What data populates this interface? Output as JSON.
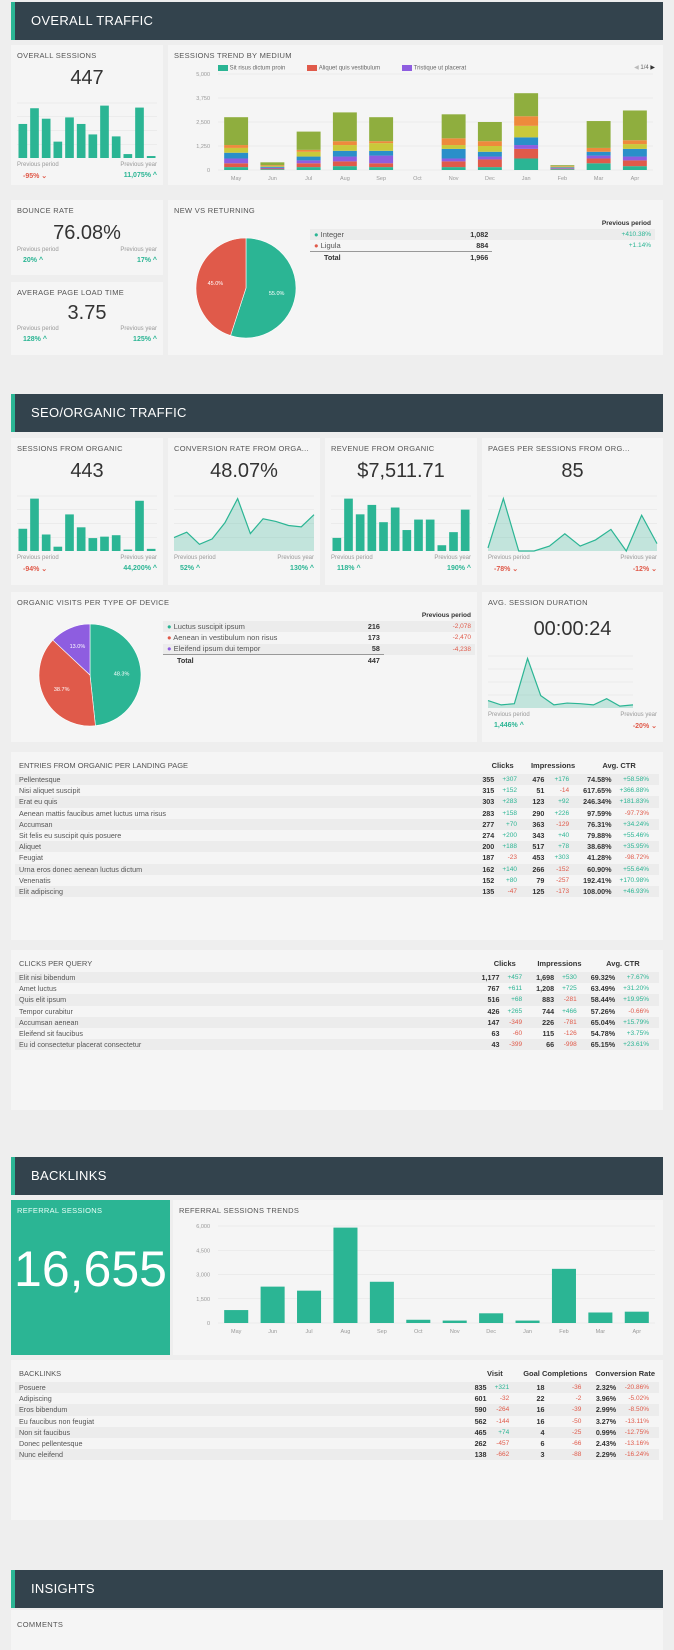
{
  "colors": {
    "accent": "#2bb594",
    "negative": "#e05a4a",
    "purple": "#8e5de0",
    "header": "#33434d"
  },
  "overall": {
    "title": "OVERALL TRAFFIC",
    "sessions": {
      "title": "OVERALL SESSIONS",
      "value": "447",
      "prev_label": "Previous period",
      "year_label": "Previous year",
      "prev": "-95%",
      "year": "11,075%",
      "spark": [
        52,
        76,
        60,
        25,
        62,
        52,
        36,
        80,
        33,
        6,
        77,
        3
      ]
    },
    "trend": {
      "title": "SESSIONS TREND BY MEDIUM",
      "legend": [
        "Sit risus dictum proin",
        "Aliquet quis vestibulum",
        "Tristique ut placerat"
      ],
      "pager": "1/4"
    },
    "bounce": {
      "title": "BOUNCE RATE",
      "value": "76.08%",
      "prev_label": "Previous period",
      "year_label": "Previous year",
      "prev": "20%",
      "year": "17%"
    },
    "load": {
      "title": "AVERAGE PAGE LOAD TIME",
      "value": "3.75",
      "prev_label": "Previous period",
      "year_label": "Previous year",
      "prev": "128%",
      "year": "125%"
    },
    "newret": {
      "title": "NEW VS RETURNING",
      "prev_header": "Previous period",
      "rows": [
        {
          "label": "Integer",
          "value": "1,082",
          "change": "+410.38%"
        },
        {
          "label": "Ligula",
          "value": "884",
          "change": "+1.14%"
        }
      ],
      "total_label": "Total",
      "total": "1,966"
    }
  },
  "seo": {
    "title": "SEO/ORGANIC TRAFFIC",
    "kpis": [
      {
        "title": "SESSIONS FROM ORGANIC",
        "value": "443",
        "prev": "-94%",
        "year": "44,200%",
        "kind": "bar",
        "spark": [
          31,
          73,
          23,
          6,
          51,
          33,
          18,
          20,
          22,
          2,
          70,
          3
        ]
      },
      {
        "title": "CONVERSION RATE FROM ORGA...",
        "value": "48.07%",
        "prev": "52%",
        "year": "130%",
        "kind": "line",
        "spark": [
          20,
          28,
          10,
          18,
          42,
          78,
          26,
          48,
          44,
          38,
          36,
          54
        ]
      },
      {
        "title": "REVENUE FROM ORGANIC",
        "value": "$7,511.71",
        "prev": "118%",
        "year": "190%",
        "kind": "bar",
        "spark": [
          25,
          100,
          70,
          88,
          55,
          83,
          40,
          60,
          60,
          11,
          36,
          79
        ]
      },
      {
        "title": "PAGES PER SESSIONS FROM ORG...",
        "value": "85",
        "prev": "-78%",
        "year": "-12%",
        "kind": "line",
        "spark": [
          5,
          85,
          0,
          0,
          8,
          28,
          8,
          18,
          35,
          0,
          58,
          12
        ]
      }
    ],
    "prev_label": "Previous period",
    "year_label": "Previous year",
    "device": {
      "title": "ORGANIC VISITS PER TYPE OF DEVICE",
      "prev_header": "Previous period",
      "rows": [
        {
          "label": "Luctus suscipit ipsum",
          "value": "216",
          "change": "-2,078"
        },
        {
          "label": "Aenean in vestibulum non risus",
          "value": "173",
          "change": "-2,470"
        },
        {
          "label": "Eleifend ipsum dui tempor",
          "value": "58",
          "change": "-4,238"
        }
      ],
      "total_label": "Total",
      "total": "447"
    },
    "duration": {
      "title": "AVG. SESSION DURATION",
      "value": "00:00:24",
      "prev": "1,446%",
      "year": "-20%",
      "spark": [
        12,
        5,
        7,
        80,
        20,
        5,
        8,
        7,
        5,
        15,
        3,
        5
      ]
    },
    "entries": {
      "title": "ENTRIES FROM ORGANIC PER LANDING PAGE",
      "headers": [
        "Clicks",
        "Impressions",
        "Avg. CTR"
      ],
      "rows": [
        [
          "Pellentesque",
          "355",
          "+307",
          "476",
          "+176",
          "74.58%",
          "+58.58%"
        ],
        [
          "Nisi aliquet suscipit",
          "315",
          "+152",
          "51",
          "-14",
          "617.65%",
          "+366.88%"
        ],
        [
          "Erat eu quis",
          "303",
          "+283",
          "123",
          "+92",
          "246.34%",
          "+181.83%"
        ],
        [
          "Aenean mattis faucibus amet luctus urna risus",
          "283",
          "+158",
          "290",
          "+226",
          "97.59%",
          "-97.73%"
        ],
        [
          "Accumsan",
          "277",
          "+70",
          "363",
          "-129",
          "76.31%",
          "+34.24%"
        ],
        [
          "Sit felis eu suscipit quis posuere",
          "274",
          "+200",
          "343",
          "+40",
          "79.88%",
          "+55.46%"
        ],
        [
          "Aliquet",
          "200",
          "+188",
          "517",
          "+78",
          "38.68%",
          "+35.95%"
        ],
        [
          "Feugiat",
          "187",
          "-23",
          "453",
          "+303",
          "41.28%",
          "-98.72%"
        ],
        [
          "Urna eros donec aenean luctus dictum",
          "162",
          "+140",
          "266",
          "-152",
          "60.90%",
          "+55.64%"
        ],
        [
          "Venenatis",
          "152",
          "+80",
          "79",
          "-257",
          "192.41%",
          "+170.98%"
        ],
        [
          "Elit adipiscing",
          "135",
          "-47",
          "125",
          "-173",
          "108.00%",
          "+46.93%"
        ]
      ]
    },
    "queries": {
      "title": "CLICKS PER QUERY",
      "headers": [
        "Clicks",
        "Impressions",
        "Avg. CTR"
      ],
      "rows": [
        [
          "Elit nisi bibendum",
          "1,177",
          "+457",
          "1,698",
          "+530",
          "69.32%",
          "+7.67%"
        ],
        [
          "Amet luctus",
          "767",
          "+611",
          "1,208",
          "+725",
          "63.49%",
          "+31.20%"
        ],
        [
          "Quis elit ipsum",
          "516",
          "+68",
          "883",
          "-281",
          "58.44%",
          "+19.95%"
        ],
        [
          "Tempor curabitur",
          "426",
          "+265",
          "744",
          "+466",
          "57.26%",
          "-0.66%"
        ],
        [
          "Accumsan aenean",
          "147",
          "-349",
          "226",
          "-781",
          "65.04%",
          "+15.79%"
        ],
        [
          "Eleifend sit faucibus",
          "63",
          "-60",
          "115",
          "-126",
          "54.78%",
          "+3.75%"
        ],
        [
          "Eu id consectetur placerat consectetur",
          "43",
          "-399",
          "66",
          "-998",
          "65.15%",
          "+23.61%"
        ]
      ]
    }
  },
  "backlinks": {
    "title": "BACKLINKS",
    "referral": {
      "title": "REFERRAL SESSIONS",
      "value": "16,655"
    },
    "trend_title": "REFERRAL SESSIONS TRENDS",
    "table": {
      "title": "BACKLINKS",
      "headers": [
        "Visit",
        "Goal Completions",
        "Conversion Rate"
      ],
      "rows": [
        [
          "Posuere",
          "835",
          "+321",
          "18",
          "-36",
          "2.32%",
          "-20.86%"
        ],
        [
          "Adipiscing",
          "601",
          "-32",
          "22",
          "-2",
          "3.96%",
          "-5.02%"
        ],
        [
          "Eros bibendum",
          "590",
          "-264",
          "16",
          "-39",
          "2.99%",
          "-8.50%"
        ],
        [
          "Eu faucibus non feugiat",
          "562",
          "-144",
          "16",
          "-50",
          "3.27%",
          "-13.11%"
        ],
        [
          "Non sit faucibus",
          "465",
          "+74",
          "4",
          "-25",
          "0.99%",
          "-12.75%"
        ],
        [
          "Donec pellentesque",
          "262",
          "-457",
          "6",
          "-66",
          "2.43%",
          "-13.16%"
        ],
        [
          "Nunc eleifend",
          "138",
          "-662",
          "3",
          "-88",
          "2.29%",
          "-16.24%"
        ]
      ]
    }
  },
  "insights": {
    "title": "INSIGHTS",
    "comments_title": "COMMENTS"
  },
  "chart_data": [
    {
      "type": "bar",
      "stacked": true,
      "title": "SESSIONS TREND BY MEDIUM",
      "categories": [
        "May",
        "Jun",
        "Jul",
        "Aug",
        "Sep",
        "Oct",
        "Nov",
        "Dec",
        "Jan",
        "Feb",
        "Mar",
        "Apr"
      ],
      "ylim": [
        0,
        5000
      ],
      "yticks": [
        "0",
        "1,250",
        "2,500",
        "3,750",
        "5,000"
      ],
      "grid": true,
      "legend": "top",
      "series_colors": [
        "#2bb594",
        "#e05a4a",
        "#8e5de0",
        "#2a8fc9",
        "#c9c93a",
        "#ee8a3c",
        "#8fae3e"
      ],
      "series": [
        {
          "name": "Sit risus dictum proin",
          "values": [
            150,
            40,
            150,
            200,
            150,
            0,
            150,
            150,
            600,
            40,
            350,
            200
          ]
        },
        {
          "name": "Aliquet quis vestibulum",
          "values": [
            200,
            40,
            200,
            250,
            200,
            0,
            300,
            400,
            500,
            30,
            250,
            300
          ]
        },
        {
          "name": "Tristique ut placerat",
          "values": [
            250,
            40,
            150,
            250,
            400,
            0,
            150,
            150,
            200,
            30,
            150,
            200
          ]
        },
        {
          "values": [
            300,
            50,
            200,
            300,
            250,
            0,
            500,
            250,
            400,
            40,
            200,
            400
          ]
        },
        {
          "values": [
            250,
            40,
            250,
            300,
            400,
            0,
            200,
            300,
            600,
            30,
            0,
            250
          ]
        },
        {
          "values": [
            150,
            40,
            100,
            200,
            100,
            0,
            350,
            250,
            500,
            30,
            200,
            200
          ]
        },
        {
          "values": [
            1450,
            150,
            950,
            1500,
            1250,
            0,
            1250,
            1000,
            1200,
            50,
            1400,
            1550
          ]
        }
      ]
    },
    {
      "type": "pie",
      "title": "NEW VS RETURNING",
      "labels": [
        "Integer",
        "Ligula"
      ],
      "values": [
        55.0,
        45.0
      ],
      "colors": [
        "#2bb594",
        "#e05a4a"
      ]
    },
    {
      "type": "pie",
      "title": "ORGANIC VISITS PER TYPE OF DEVICE",
      "labels": [
        "Luctus suscipit ipsum",
        "Aenean in vestibulum non risus",
        "Eleifend ipsum dui tempor"
      ],
      "values": [
        48.3,
        38.7,
        13.0
      ],
      "colors": [
        "#2bb594",
        "#e05a4a",
        "#8e5de0"
      ]
    },
    {
      "type": "bar",
      "title": "REFERRAL SESSIONS TRENDS",
      "categories": [
        "May",
        "Jun",
        "Jul",
        "Aug",
        "Sep",
        "Oct",
        "Nov",
        "Dec",
        "Jan",
        "Feb",
        "Mar",
        "Apr"
      ],
      "values": [
        800,
        2250,
        2000,
        5900,
        2550,
        200,
        150,
        600,
        150,
        3350,
        650,
        700
      ],
      "ylim": [
        0,
        6000
      ],
      "yticks": [
        "0",
        "1,500",
        "3,000",
        "4,500",
        "6,000"
      ],
      "grid": true
    }
  ]
}
